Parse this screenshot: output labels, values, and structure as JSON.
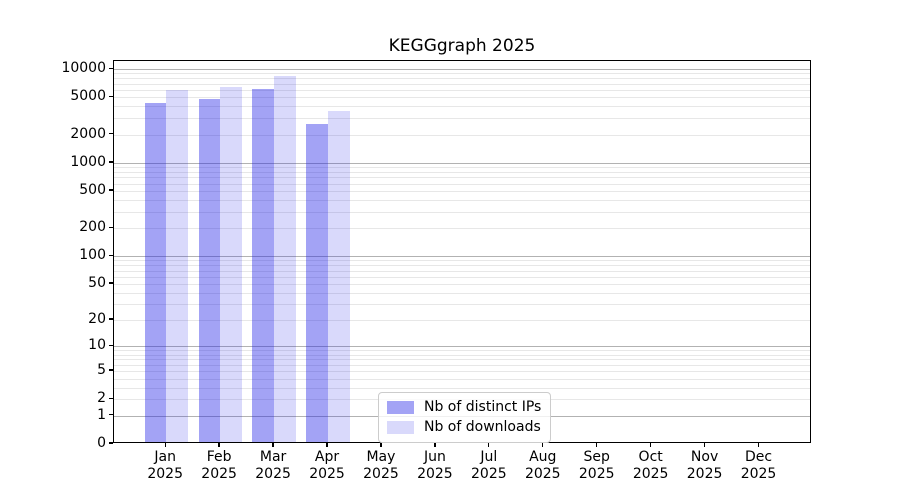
{
  "chart_data": {
    "type": "bar",
    "title": "KEGGgraph 2025",
    "xlabel": "",
    "ylabel": "",
    "y_scale": "symlog",
    "ylim": [
      0,
      12000
    ],
    "grid": "horizontal, minor light + major at decades",
    "legend_position": "lower center",
    "categories": [
      "Jan",
      "Feb",
      "Mar",
      "Apr",
      "May",
      "Jun",
      "Jul",
      "Aug",
      "Sep",
      "Oct",
      "Nov",
      "Dec"
    ],
    "year_label": "2025",
    "y_ticks": [
      0,
      1,
      2,
      5,
      10,
      20,
      50,
      100,
      200,
      500,
      1000,
      2000,
      5000,
      10000
    ],
    "series": [
      {
        "name": "Nb of distinct IPs",
        "color": "rgba(25,25,230,0.4)",
        "color_hex_on_white": "#a3a3f5",
        "values": [
          4200,
          4600,
          5800,
          2500,
          null,
          null,
          null,
          null,
          null,
          null,
          null,
          null
        ]
      },
      {
        "name": "Nb of downloads",
        "color": "rgba(25,25,230,0.165)",
        "color_hex_on_white": "#d9d9f9",
        "values": [
          5700,
          6200,
          8000,
          3400,
          null,
          null,
          null,
          null,
          null,
          null,
          null,
          null
        ]
      }
    ],
    "colors": {
      "major_grid": "#b2b2b2",
      "minor_grid": "#e7e7e7",
      "axis": "#000000",
      "text": "#000000",
      "legend_border": "#cccccc"
    }
  }
}
